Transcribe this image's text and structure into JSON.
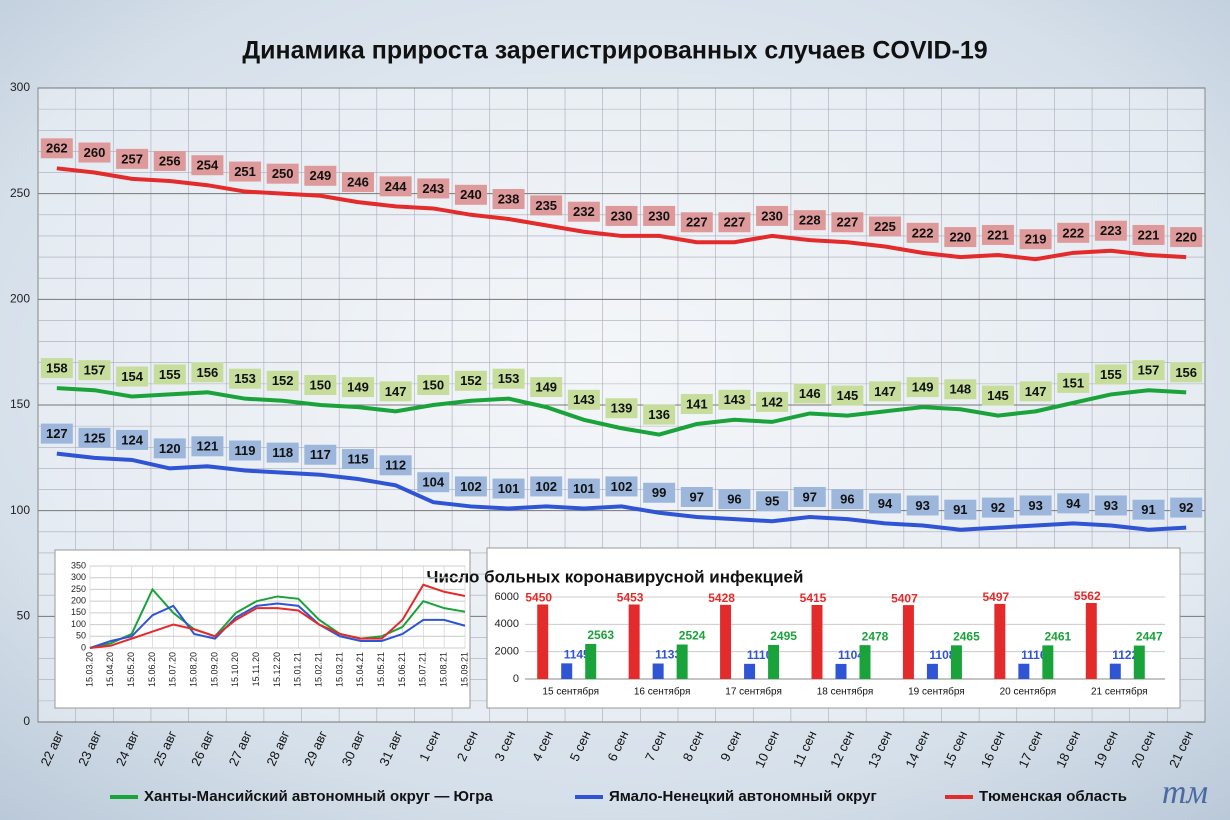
{
  "chart_data": [
    {
      "type": "line",
      "title": "Динамика прироста зарегистрированных случаев COVID-19",
      "categories": [
        "22 авг",
        "23 авг",
        "24 авг",
        "25 авг",
        "26 авг",
        "27 авг",
        "28 авг",
        "29 авг",
        "30 авг",
        "31 авг",
        "1 сен",
        "2 сен",
        "3 сен",
        "4 сен",
        "5 сен",
        "6 сен",
        "7 сен",
        "8 сен",
        "9 сен",
        "10 сен",
        "11 сен",
        "12 сен",
        "13 сен",
        "14 сен",
        "15 сен",
        "16 сен",
        "17 сен",
        "18 сен",
        "19 сен",
        "20 сен",
        "21 сен"
      ],
      "series": [
        {
          "name": "Ханты-Мансийский автономный округ — Югра",
          "color": "#1aa33a",
          "label_color": "#c6dd9c",
          "values": [
            158,
            157,
            154,
            155,
            156,
            153,
            152,
            150,
            149,
            147,
            150,
            152,
            153,
            149,
            143,
            139,
            136,
            141,
            143,
            142,
            146,
            145,
            147,
            149,
            148,
            145,
            147,
            151,
            155,
            157,
            156
          ]
        },
        {
          "name": "Ямало-Ненецкий автономный округ",
          "color": "#2f55d4",
          "label_color": "#9db7dc",
          "values": [
            127,
            125,
            124,
            120,
            121,
            119,
            118,
            117,
            115,
            112,
            104,
            102,
            101,
            102,
            101,
            102,
            99,
            97,
            96,
            95,
            97,
            96,
            94,
            93,
            91,
            92,
            93,
            94,
            93,
            91,
            92
          ]
        },
        {
          "name": "Тюменская область",
          "color": "#e42b2b",
          "label_color": "#de9a9a",
          "values": [
            262,
            260,
            257,
            256,
            254,
            251,
            250,
            249,
            246,
            244,
            243,
            240,
            238,
            235,
            232,
            230,
            230,
            227,
            227,
            230,
            228,
            227,
            225,
            222,
            220,
            221,
            219,
            222,
            223,
            221,
            220
          ]
        }
      ],
      "ylim": [
        0,
        300
      ],
      "yticks": [
        0,
        50,
        100,
        150,
        200,
        250,
        300
      ],
      "grid": true,
      "legend": "bottom"
    },
    {
      "type": "line",
      "categories": [
        "15.03.20",
        "15.04.20",
        "15.05.20",
        "15.06.20",
        "15.07.20",
        "15.08.20",
        "15.09.20",
        "15.10.20",
        "15.11.20",
        "15.12.20",
        "15.01.21",
        "15.02.21",
        "15.03.21",
        "15.04.21",
        "15.05.21",
        "15.06.21",
        "15.07.21",
        "15.08.21",
        "15.09.21"
      ],
      "series": [
        {
          "color": "#1aa33a",
          "values": [
            0,
            20,
            60,
            250,
            150,
            80,
            50,
            150,
            200,
            220,
            210,
            120,
            60,
            40,
            50,
            90,
            200,
            170,
            155
          ]
        },
        {
          "color": "#2f55d4",
          "values": [
            0,
            30,
            50,
            140,
            180,
            60,
            40,
            130,
            180,
            190,
            180,
            100,
            50,
            30,
            30,
            60,
            120,
            120,
            95
          ]
        },
        {
          "color": "#e42b2b",
          "values": [
            0,
            10,
            40,
            70,
            100,
            80,
            50,
            120,
            170,
            170,
            160,
            100,
            60,
            40,
            40,
            120,
            270,
            240,
            222
          ]
        }
      ],
      "ylim": [
        0,
        350
      ],
      "yticks": [
        0,
        50,
        100,
        150,
        200,
        250,
        300,
        350
      ],
      "grid": true
    },
    {
      "type": "bar",
      "title": "Число больных коронавирусной  инфекцией",
      "categories": [
        "15 сентября",
        "16 сентября",
        "17 сентября",
        "18 сентября",
        "19 сентября",
        "20 сентября",
        "21 сентября"
      ],
      "series": [
        {
          "color": "#e42b2b",
          "values": [
            5450,
            5453,
            5428,
            5415,
            5407,
            5497,
            5562
          ]
        },
        {
          "color": "#2f55d4",
          "values": [
            1145,
            1133,
            1110,
            1104,
            1108,
            1116,
            1122
          ]
        },
        {
          "color": "#1aa33a",
          "values": [
            2563,
            2524,
            2495,
            2478,
            2465,
            2461,
            2447
          ]
        }
      ],
      "ylim": [
        0,
        6000
      ],
      "yticks": [
        0,
        2000,
        4000,
        6000
      ],
      "grid": true
    }
  ],
  "logo": "тм"
}
